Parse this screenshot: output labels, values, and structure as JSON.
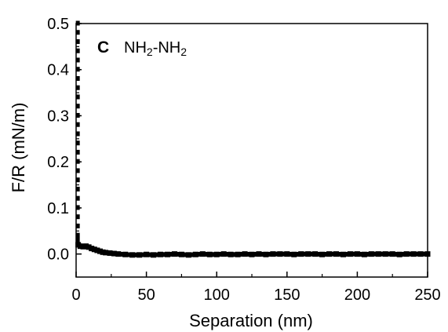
{
  "chart_data": {
    "type": "scatter",
    "xlabel": "Separation (nm)",
    "ylabel": "F/R (mN/m)",
    "xlim": [
      0,
      250
    ],
    "ylim": [
      -0.05,
      0.5
    ],
    "x_ticks": [
      0,
      50,
      100,
      150,
      200,
      250
    ],
    "x_tick_labels": [
      "0",
      "50",
      "100",
      "150",
      "200",
      "250"
    ],
    "y_ticks": [
      0.0,
      0.1,
      0.2,
      0.3,
      0.4,
      0.5
    ],
    "y_tick_labels": [
      "0.0",
      "0.1",
      "0.2",
      "0.3",
      "0.4",
      "0.5"
    ],
    "grid": false,
    "annotation": {
      "letter": "C",
      "label_parts": [
        "NH",
        "2",
        "-NH",
        "2"
      ]
    },
    "marker_color": "#000000",
    "series": [
      {
        "marker": "square",
        "jump_in": {
          "x": 1.2,
          "y": [
            0.5,
            0.48,
            0.46,
            0.44,
            0.42,
            0.4,
            0.38,
            0.36,
            0.34,
            0.32,
            0.3,
            0.28,
            0.26,
            0.24,
            0.22,
            0.2,
            0.18,
            0.16,
            0.14,
            0.12,
            0.1,
            0.08,
            0.06,
            0.04,
            0.03
          ]
        },
        "x": [
          1.5,
          3,
          5,
          7,
          9,
          11,
          13,
          15,
          17,
          19,
          21,
          24,
          27,
          30,
          35,
          40,
          45,
          50,
          55,
          60,
          65,
          70,
          75,
          80,
          85,
          90,
          95,
          100,
          105,
          110,
          115,
          120,
          125,
          130,
          135,
          140,
          145,
          150,
          155,
          160,
          165,
          170,
          175,
          180,
          185,
          190,
          195,
          200,
          205,
          210,
          215,
          220,
          225,
          230,
          235,
          240,
          245,
          250
        ],
        "y": [
          0.02,
          0.017,
          0.016,
          0.017,
          0.015,
          0.012,
          0.01,
          0.008,
          0.006,
          0.004,
          0.003,
          0.002,
          0.001,
          0.0,
          -0.001,
          -0.002,
          -0.002,
          -0.001,
          -0.002,
          -0.001,
          -0.001,
          0.0,
          -0.001,
          -0.002,
          -0.001,
          0.0,
          -0.001,
          -0.001,
          0.0,
          -0.001,
          -0.001,
          0.0,
          -0.001,
          0.0,
          -0.001,
          0.0,
          0.0,
          0.0,
          -0.001,
          0.0,
          0.0,
          0.0,
          -0.001,
          0.0,
          0.0,
          -0.001,
          0.0,
          0.0,
          -0.001,
          0.0,
          0.0,
          0.0,
          0.0,
          -0.001,
          0.0,
          0.0,
          0.0,
          0.0
        ]
      }
    ]
  }
}
